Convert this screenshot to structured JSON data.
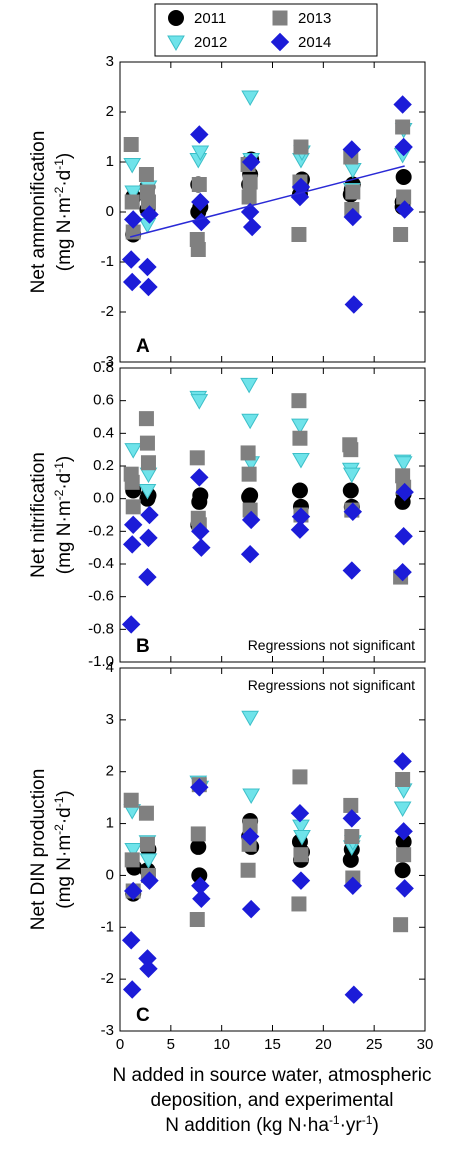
{
  "chart_data": [
    {
      "type": "scatter",
      "panel_label": "A",
      "ylabel": [
        "Net ammonification",
        [
          "(mg N·m",
          "-2",
          "·d",
          "-1",
          ")"
        ]
      ],
      "xlim": [
        0,
        30
      ],
      "xticks": [
        0,
        5,
        10,
        15,
        20,
        25,
        30
      ],
      "ylim": [
        -3,
        3
      ],
      "yticks": [
        -3,
        -2,
        -1,
        0,
        1,
        2,
        3
      ],
      "regression": {
        "x": [
          1,
          28
        ],
        "y": [
          -0.5,
          0.92
        ],
        "color": "#2a2ad6"
      },
      "series": [
        {
          "name": "2011",
          "color": "#000000",
          "marker": "circle",
          "x": [
            1.3,
            1.3,
            2.7,
            2.7,
            7.7,
            7.7,
            7.9,
            12.7,
            12.8,
            12.9,
            17.7,
            17.8,
            17.9,
            22.7,
            22.8,
            22.9,
            27.8,
            27.8,
            27.9
          ],
          "values": [
            -0.45,
            0.3,
            0.05,
            0.5,
            0.55,
            0.0,
            0.1,
            0.55,
            0.75,
            1.05,
            0.35,
            0.5,
            0.65,
            0.35,
            0.45,
            0.55,
            0.1,
            0.2,
            0.7
          ]
        },
        {
          "name": "2012",
          "color": "#6fe3ea",
          "marker": "triangle-down",
          "x": [
            1.2,
            1.3,
            2.7,
            2.8,
            7.7,
            7.9,
            12.8,
            12.9,
            17.8,
            17.9,
            22.8,
            22.9,
            27.8,
            27.9
          ],
          "values": [
            0.95,
            0.4,
            -0.25,
            0.5,
            1.05,
            1.2,
            2.3,
            1.05,
            1.05,
            1.2,
            0.45,
            0.85,
            1.15,
            1.65
          ]
        },
        {
          "name": "2013",
          "color": "#808080",
          "marker": "square",
          "x": [
            1.1,
            1.2,
            1.3,
            2.6,
            2.7,
            2.8,
            7.6,
            7.7,
            7.8,
            12.6,
            12.7,
            12.8,
            17.6,
            17.7,
            17.8,
            22.7,
            22.8,
            22.9,
            27.6,
            27.8,
            27.9
          ],
          "values": [
            1.35,
            0.2,
            -0.4,
            0.75,
            0.4,
            0.2,
            -0.55,
            -0.75,
            0.55,
            0.95,
            0.3,
            0.6,
            -0.45,
            0.6,
            1.3,
            1.1,
            0.05,
            0.4,
            -0.45,
            1.7,
            0.3
          ]
        },
        {
          "name": "2014",
          "color": "#1c1cd8",
          "marker": "diamond",
          "x": [
            1.1,
            1.2,
            1.3,
            2.7,
            2.8,
            2.9,
            7.8,
            7.9,
            8.0,
            12.8,
            12.9,
            13.0,
            17.7,
            17.8,
            22.8,
            22.9,
            23.0,
            27.8,
            27.9,
            28.0
          ],
          "values": [
            -0.95,
            -1.4,
            -0.15,
            -1.1,
            -1.5,
            -0.05,
            1.55,
            0.2,
            -0.2,
            0.0,
            1.0,
            -0.3,
            0.3,
            0.5,
            1.25,
            -0.1,
            -1.85,
            2.15,
            1.3,
            0.05
          ]
        }
      ]
    },
    {
      "type": "scatter",
      "panel_label": "B",
      "annotation": "Regressions not significant",
      "annotation_corner": "bottom-right",
      "ylabel": [
        "Net nitrification",
        [
          "(mg N·m",
          "-2",
          "·d",
          "-1",
          ")"
        ]
      ],
      "xlim": [
        0,
        30
      ],
      "xticks": [
        0,
        5,
        10,
        15,
        20,
        25,
        30
      ],
      "ylim": [
        -1.0,
        0.8
      ],
      "yticks": [
        {
          "value": -1.0,
          "label": "-1.0"
        },
        -0.8,
        -0.6,
        -0.4,
        -0.2,
        {
          "value": 0,
          "label": "0.0"
        },
        0.2,
        0.4,
        0.6,
        0.8
      ],
      "series": [
        {
          "color": "#000000",
          "marker": "circle",
          "x": [
            1.3,
            2.7,
            2.8,
            7.7,
            7.8,
            7.9,
            12.7,
            12.8,
            17.7,
            17.8,
            22.7,
            22.8,
            27.8,
            27.9
          ],
          "values": [
            0.05,
            0.0,
            0.02,
            -0.16,
            -0.02,
            0.02,
            0.01,
            0.02,
            0.05,
            -0.05,
            0.05,
            -0.05,
            -0.02,
            0.03
          ]
        },
        {
          "color": "#6fe3ea",
          "marker": "triangle-down",
          "x": [
            1.3,
            2.7,
            2.8,
            7.7,
            7.8,
            12.7,
            12.8,
            12.9,
            17.7,
            17.8,
            22.7,
            22.8,
            27.8,
            27.9
          ],
          "values": [
            0.3,
            0.05,
            0.15,
            0.62,
            0.6,
            0.7,
            0.48,
            0.22,
            0.45,
            0.24,
            0.18,
            0.15,
            0.23,
            0.22
          ]
        },
        {
          "color": "#808080",
          "marker": "square",
          "x": [
            1.1,
            1.2,
            1.3,
            2.6,
            2.7,
            2.8,
            7.6,
            7.7,
            7.8,
            12.6,
            12.7,
            12.8,
            17.6,
            17.7,
            17.8,
            22.6,
            22.7,
            22.8,
            27.6,
            27.8,
            27.9
          ],
          "values": [
            0.15,
            0.1,
            -0.05,
            0.49,
            0.34,
            0.22,
            0.25,
            -0.12,
            -0.16,
            0.28,
            0.15,
            -0.07,
            0.6,
            0.37,
            -0.1,
            0.33,
            0.3,
            -0.07,
            -0.48,
            0.14,
            0.07
          ]
        },
        {
          "color": "#1c1cd8",
          "marker": "diamond",
          "x": [
            1.1,
            1.2,
            1.3,
            2.7,
            2.8,
            2.9,
            7.8,
            7.9,
            8.0,
            12.8,
            12.9,
            17.7,
            17.8,
            22.8,
            22.9,
            27.8,
            27.9,
            28.0
          ],
          "values": [
            -0.77,
            -0.28,
            -0.16,
            -0.48,
            -0.24,
            -0.1,
            0.13,
            -0.2,
            -0.3,
            -0.34,
            -0.13,
            -0.19,
            -0.11,
            -0.44,
            -0.08,
            -0.45,
            -0.23,
            0.04
          ]
        }
      ]
    },
    {
      "type": "scatter",
      "panel_label": "C",
      "annotation": "Regressions not significant",
      "annotation_corner": "top-right",
      "ylabel": [
        "Net DIN production",
        [
          "(mg N·m",
          "-2",
          "·d",
          "-1",
          ")"
        ]
      ],
      "xlabel": [
        "N added in source water, atmospheric",
        "deposition, and experimental",
        [
          "N addition (kg N·ha",
          "-1",
          "·yr",
          "-1",
          ")"
        ]
      ],
      "xlim": [
        0,
        30
      ],
      "xticks": [
        0,
        5,
        10,
        15,
        20,
        25,
        30
      ],
      "ylim": [
        -3,
        4
      ],
      "yticks": [
        -3,
        -2,
        -1,
        0,
        1,
        2,
        3,
        4
      ],
      "series": [
        {
          "color": "#000000",
          "marker": "circle",
          "x": [
            1.3,
            1.4,
            2.7,
            2.8,
            7.7,
            7.8,
            12.7,
            12.8,
            12.9,
            17.7,
            17.8,
            17.9,
            22.7,
            22.8,
            27.8,
            27.9
          ],
          "values": [
            -0.35,
            0.15,
            0.1,
            0.5,
            0.55,
            0.0,
            0.75,
            1.05,
            0.55,
            0.65,
            0.3,
            0.45,
            0.3,
            0.5,
            0.1,
            0.65
          ]
        },
        {
          "color": "#6fe3ea",
          "marker": "triangle-down",
          "x": [
            1.2,
            1.3,
            2.7,
            2.8,
            7.7,
            7.9,
            12.8,
            12.9,
            17.8,
            17.9,
            22.8,
            22.9,
            27.8,
            27.9
          ],
          "values": [
            1.25,
            0.5,
            0.65,
            0.3,
            1.8,
            1.7,
            3.05,
            1.55,
            0.95,
            0.75,
            0.55,
            0.65,
            1.3,
            1.65
          ]
        },
        {
          "color": "#808080",
          "marker": "square",
          "x": [
            1.1,
            1.2,
            1.3,
            2.6,
            2.7,
            2.8,
            7.6,
            7.7,
            7.8,
            12.6,
            12.7,
            12.8,
            17.6,
            17.7,
            17.8,
            22.7,
            22.8,
            22.9,
            27.6,
            27.8,
            27.9
          ],
          "values": [
            1.45,
            0.3,
            -0.3,
            1.2,
            0.6,
            0.0,
            -0.85,
            0.8,
            1.75,
            0.1,
            0.6,
            0.95,
            -0.55,
            1.9,
            0.4,
            1.35,
            0.75,
            -0.05,
            -0.95,
            1.85,
            0.4
          ]
        },
        {
          "color": "#1c1cd8",
          "marker": "diamond",
          "x": [
            1.1,
            1.2,
            1.3,
            2.7,
            2.8,
            2.9,
            7.8,
            7.9,
            8.0,
            12.8,
            12.9,
            17.7,
            17.8,
            22.8,
            22.9,
            23.0,
            27.8,
            27.9,
            28.0
          ],
          "values": [
            -1.25,
            -2.2,
            -0.3,
            -1.6,
            -1.8,
            -0.1,
            1.7,
            -0.2,
            -0.45,
            0.75,
            -0.65,
            1.2,
            -0.1,
            1.1,
            -0.2,
            -2.3,
            2.2,
            0.85,
            -0.25
          ]
        }
      ]
    }
  ]
}
